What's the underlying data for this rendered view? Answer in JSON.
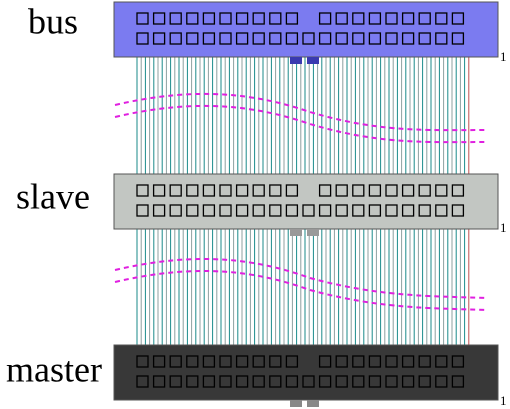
{
  "connectors": [
    {
      "label": "bus",
      "pin_label": "1"
    },
    {
      "label": "slave",
      "pin_label": "1"
    },
    {
      "label": "master",
      "pin_label": "1"
    }
  ]
}
